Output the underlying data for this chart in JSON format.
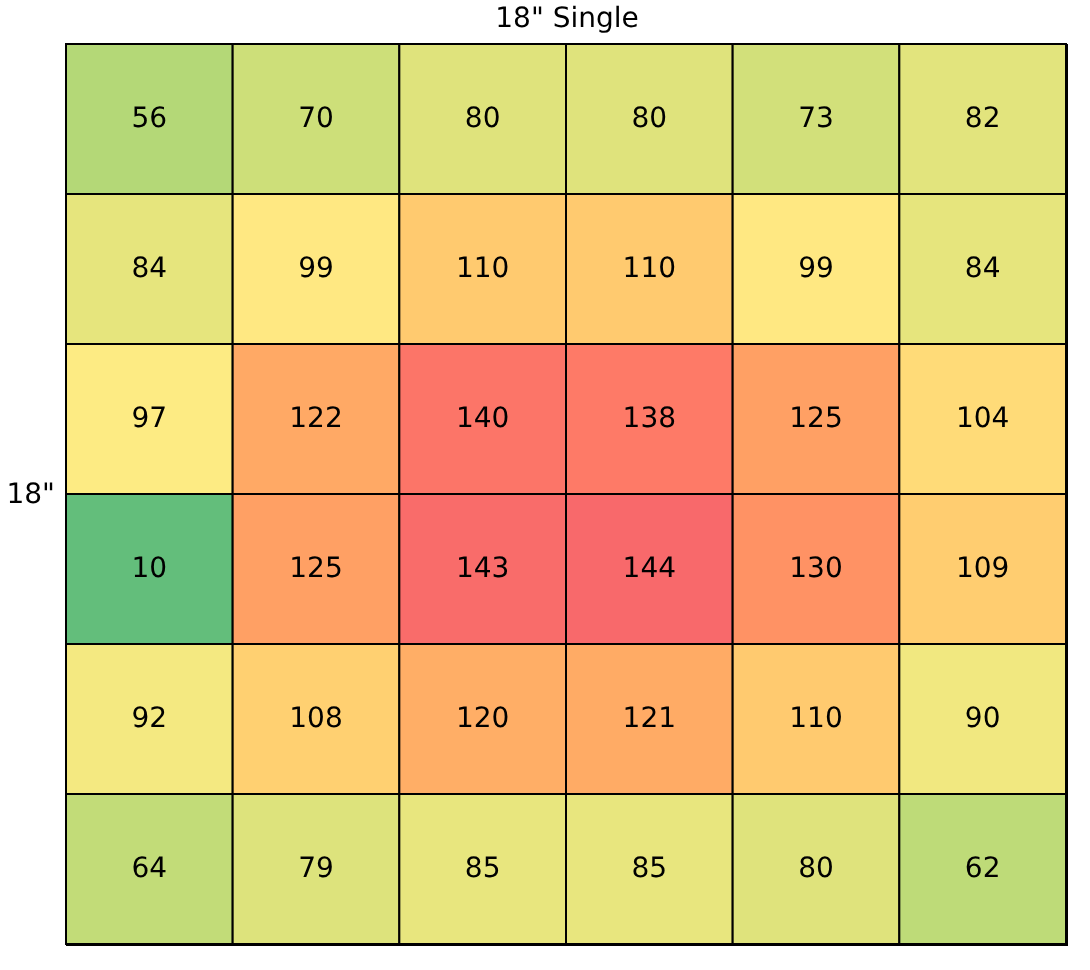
{
  "chart_data": {
    "type": "heatmap",
    "title": "18\" Single",
    "ylabel": "18\"",
    "categories": [
      null,
      null,
      null,
      null,
      null,
      null
    ],
    "y_categories": [
      null,
      null,
      null,
      null,
      null,
      null
    ],
    "cells": [
      [
        56,
        70,
        80,
        80,
        73,
        82
      ],
      [
        84,
        99,
        110,
        110,
        99,
        84
      ],
      [
        97,
        122,
        140,
        138,
        125,
        104
      ],
      [
        10,
        125,
        143,
        144,
        130,
        109
      ],
      [
        92,
        108,
        120,
        121,
        110,
        90
      ],
      [
        64,
        79,
        85,
        85,
        80,
        62
      ]
    ],
    "data_labels": true
  }
}
